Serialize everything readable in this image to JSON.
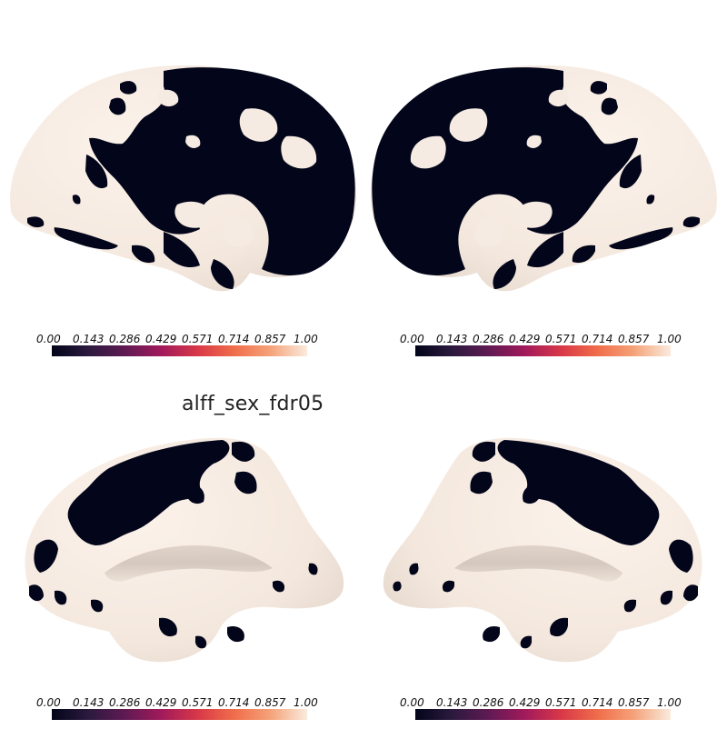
{
  "figure": {
    "title": "alff_sex_fdr05",
    "colormap": {
      "name": "rocket",
      "stops": [
        "#03051a",
        "#2b1a3e",
        "#5f1a53",
        "#a11a5b",
        "#d83848",
        "#f06d4a",
        "#f5a37a",
        "#faebdd"
      ]
    },
    "surface_colors": {
      "background": "#f6ebe2",
      "shade": "#d9ccc2",
      "blob": "#03051a"
    },
    "colorbars": [
      {
        "ticks": [
          "0.00",
          "0.143",
          "0.286",
          "0.429",
          "0.571",
          "0.714",
          "0.857",
          "1.00"
        ]
      },
      {
        "ticks": [
          "0.00",
          "0.143",
          "0.286",
          "0.429",
          "0.571",
          "0.714",
          "0.857",
          "1.00"
        ]
      },
      {
        "ticks": [
          "0.00",
          "0.143",
          "0.286",
          "0.429",
          "0.571",
          "0.714",
          "0.857",
          "1.00"
        ]
      },
      {
        "ticks": [
          "0.00",
          "0.143",
          "0.286",
          "0.429",
          "0.571",
          "0.714",
          "0.857",
          "1.00"
        ]
      }
    ],
    "views": [
      {
        "hemisphere": "left",
        "view": "medial"
      },
      {
        "hemisphere": "right",
        "view": "medial"
      },
      {
        "hemisphere": "left",
        "view": "lateral"
      },
      {
        "hemisphere": "right",
        "view": "lateral"
      }
    ]
  }
}
